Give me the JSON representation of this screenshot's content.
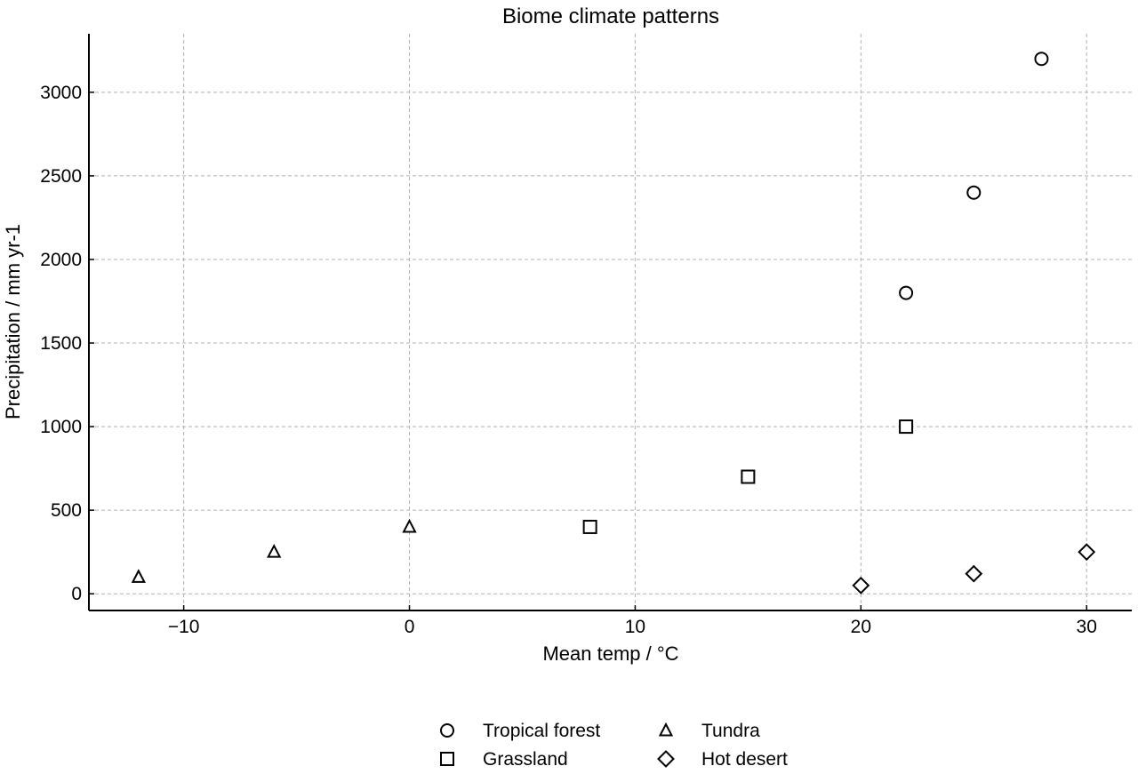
{
  "chart_data": {
    "type": "scatter",
    "title": "Biome climate patterns",
    "xlabel": "Mean temp / °C",
    "ylabel": "Precipitation / mm yr-1",
    "xlim": [
      -14.2,
      32
    ],
    "ylim": [
      -100,
      3350
    ],
    "xticks": [
      -10,
      0,
      10,
      20,
      30
    ],
    "xtick_labels": [
      "−10",
      "0",
      "10",
      "20",
      "30"
    ],
    "yticks": [
      0,
      500,
      1000,
      1500,
      2000,
      2500,
      3000
    ],
    "ytick_labels": [
      "0",
      "500",
      "1000",
      "1500",
      "2000",
      "2500",
      "3000"
    ],
    "grid": true,
    "legend_position": "bottom-center",
    "series": [
      {
        "name": "Tropical forest",
        "marker": "circle",
        "points": [
          {
            "x": 22,
            "y": 1800
          },
          {
            "x": 25,
            "y": 2400
          },
          {
            "x": 28,
            "y": 3200
          }
        ]
      },
      {
        "name": "Grassland",
        "marker": "square",
        "points": [
          {
            "x": 8,
            "y": 400
          },
          {
            "x": 15,
            "y": 700
          },
          {
            "x": 22,
            "y": 1000
          }
        ]
      },
      {
        "name": "Tundra",
        "marker": "triangle",
        "points": [
          {
            "x": -12,
            "y": 100
          },
          {
            "x": -6,
            "y": 250
          },
          {
            "x": 0,
            "y": 400
          }
        ]
      },
      {
        "name": "Hot desert",
        "marker": "diamond",
        "points": [
          {
            "x": 20,
            "y": 50
          },
          {
            "x": 25,
            "y": 120
          },
          {
            "x": 30,
            "y": 250
          }
        ]
      }
    ]
  }
}
